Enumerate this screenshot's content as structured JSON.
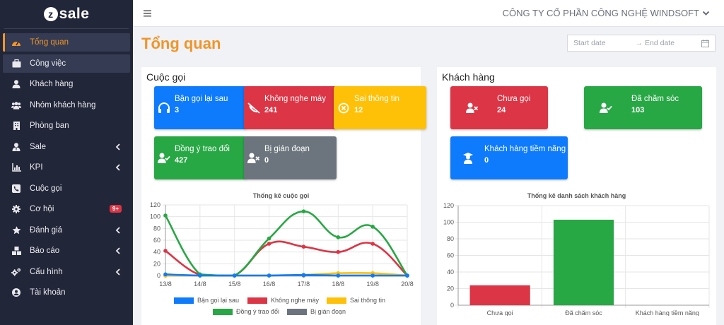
{
  "app": {
    "logo_text": "sale",
    "logo_letter": "z"
  },
  "company": "CÔNG TY CỔ PHẦN CÔNG NGHỆ WINDSOFT",
  "page_title": "Tổng quan",
  "date_filter": {
    "start_placeholder": "Start date",
    "separator": "→",
    "end_placeholder": "End date"
  },
  "sidebar": {
    "items": [
      {
        "label": "Tổng quan",
        "icon": "dashboard-icon",
        "active": true
      },
      {
        "label": "Công việc",
        "icon": "briefcase-icon"
      },
      {
        "label": "Khách hàng",
        "icon": "user-icon"
      },
      {
        "label": "Nhóm khách hàng",
        "icon": "users-icon"
      },
      {
        "label": "Phòng ban",
        "icon": "building-icon"
      },
      {
        "label": "Sale",
        "icon": "user-tie-icon",
        "chevron": true
      },
      {
        "label": "KPI",
        "icon": "chart-icon",
        "chevron": true
      },
      {
        "label": "Cuộc gọi",
        "icon": "phone-icon"
      },
      {
        "label": "Cơ hội",
        "icon": "gear-icon",
        "badge": "9+"
      },
      {
        "label": "Đánh giá",
        "icon": "star-icon",
        "chevron": true
      },
      {
        "label": "Báo cáo",
        "icon": "boxes-icon",
        "chevron": true
      },
      {
        "label": "Cấu hình",
        "icon": "cogs-icon",
        "chevron": true
      },
      {
        "label": "Tài khoản",
        "icon": "user-circle-icon"
      }
    ]
  },
  "calls": {
    "title": "Cuộc gọi",
    "cards": [
      {
        "label": "Bận gọi lại sau",
        "value": "3",
        "color": "#0d7bfc"
      },
      {
        "label": "Không nghe máy",
        "value": "241",
        "color": "#dc3545"
      },
      {
        "label": "Sai thông tin",
        "value": "12",
        "color": "#ffc108"
      },
      {
        "label": "Đồng ý trao đổi",
        "value": "427",
        "color": "#28a745"
      },
      {
        "label": "Bị gián đoạn",
        "value": "0",
        "color": "#6c757d"
      }
    ]
  },
  "customers": {
    "title": "Khách hàng",
    "cards": [
      {
        "label": "Chưa gọi",
        "value": "24",
        "color": "#dc3545"
      },
      {
        "label": "Đã chăm sóc",
        "value": "103",
        "color": "#28a745"
      },
      {
        "label": "Khách hàng tiềm năng",
        "value": "0",
        "color": "#0d7bfc"
      }
    ]
  },
  "chart_data": [
    {
      "type": "line",
      "title": "Thống kê cuộc gọi",
      "categories": [
        "13/8",
        "14/8",
        "15/8",
        "16/8",
        "17/8",
        "18/8",
        "19/8",
        "20/8"
      ],
      "ylim": [
        0,
        120
      ],
      "yticks": [
        0,
        20,
        40,
        60,
        80,
        100,
        120
      ],
      "series": [
        {
          "name": "Bận gọi lại sau",
          "color": "#0d7bfc",
          "values": [
            2,
            0,
            0,
            0,
            1,
            0,
            0,
            0
          ]
        },
        {
          "name": "Không nghe máy",
          "color": "#dc3545",
          "values": [
            42,
            1,
            0,
            54,
            49,
            40,
            54,
            0
          ]
        },
        {
          "name": "Sai thông tin",
          "color": "#ffc108",
          "values": [
            0,
            0,
            0,
            0,
            1,
            4,
            4,
            0
          ]
        },
        {
          "name": "Đồng ý trao đổi",
          "color": "#28a745",
          "values": [
            102,
            2,
            0,
            63,
            109,
            65,
            83,
            0
          ]
        },
        {
          "name": "Bị gián đoạn",
          "color": "#6c757d",
          "values": [
            0,
            0,
            0,
            0,
            0,
            0,
            0,
            0
          ]
        }
      ],
      "legend": "bottom"
    },
    {
      "type": "bar",
      "title": "Thống kê danh sách khách hàng",
      "categories": [
        "Chưa gọi",
        "Đã chăm sóc",
        "Khách hàng tiềm năng"
      ],
      "values": [
        24,
        103,
        0
      ],
      "colors": [
        "#dc3545",
        "#28a745",
        "#0d7bfc"
      ],
      "ylim": [
        0,
        120
      ],
      "yticks": [
        0,
        20,
        40,
        60,
        80,
        100,
        120
      ]
    }
  ]
}
